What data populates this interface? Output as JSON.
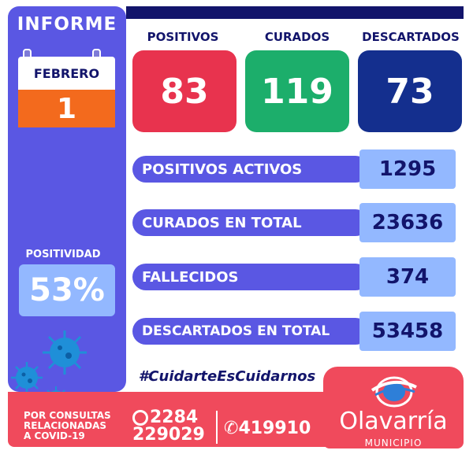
{
  "sidebar": {
    "title": "INFORME",
    "month": "FEBRERO",
    "day": "1",
    "positivity_label": "POSITIVIDAD",
    "positivity_value": "53%"
  },
  "stats": [
    {
      "label": "POSITIVOS",
      "value": "83",
      "color": "#e8334e"
    },
    {
      "label": "CURADOS",
      "value": "119",
      "color": "#1cae6b"
    },
    {
      "label": "DESCARTADOS",
      "value": "73",
      "color": "#142f8e"
    }
  ],
  "rows": [
    {
      "label": "POSITIVOS ACTIVOS",
      "value": "1295"
    },
    {
      "label": "CURADOS EN TOTAL",
      "value": "23636"
    },
    {
      "label": "FALLECIDOS",
      "value": "374"
    },
    {
      "label": "DESCARTADOS EN TOTAL",
      "value": "53458"
    }
  ],
  "hashtag": "#CuidarteEsCuidarnos",
  "footer": {
    "consult_line1": "POR CONSULTAS",
    "consult_line2": "RELACIONADAS",
    "consult_line3": "A COVID-19",
    "phone_whatsapp_line1": "2284",
    "phone_whatsapp_line2": "229029",
    "phone_landline": "419910",
    "brand": "Olavarría",
    "brand_sub": "MUNICIPIO"
  },
  "colors": {
    "navy": "#12146b",
    "purple": "#5a57e3",
    "light_blue": "#93b8ff",
    "orange": "#f36a1d",
    "footer_red": "#f04a5c"
  }
}
